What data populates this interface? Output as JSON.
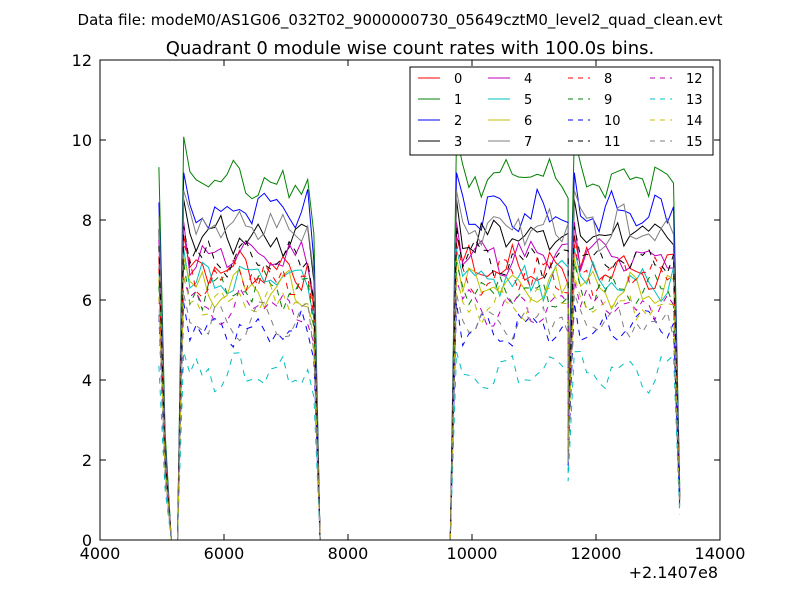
{
  "figure": {
    "suptitle": "Data file: modeM0/AS1G06_032T02_9000000730_05649cztM0_level2_quad_clean.evt"
  },
  "chart_data": {
    "type": "line",
    "title": "Quadrant 0 module wise count rates with 100.0s bins.",
    "xlabel": "",
    "ylabel": "",
    "x_offset_label": "+2.1407e8",
    "xlim": [
      4000,
      14000
    ],
    "ylim": [
      0,
      12
    ],
    "xticks": [
      "4000",
      "6000",
      "8000",
      "10000",
      "12000",
      "14000"
    ],
    "yticks": [
      "0",
      "2",
      "4",
      "6",
      "8",
      "10",
      "12"
    ],
    "grid": false,
    "legend_position": "top-right",
    "segments": [
      {
        "start": 4950,
        "dt": 100,
        "n": 3
      },
      {
        "start": 5350,
        "dt": 100,
        "n": 22
      },
      {
        "start": 9750,
        "dt": 100,
        "n": 19
      },
      {
        "start": 11650,
        "dt": 100,
        "n": 17
      }
    ],
    "series": [
      {
        "name": "0",
        "color": "#ff0000",
        "dash": "solid",
        "base": 6.8,
        "amp": 0.35
      },
      {
        "name": "1",
        "color": "#008000",
        "dash": "solid",
        "base": 9.0,
        "amp": 0.35
      },
      {
        "name": "2",
        "color": "#0000ff",
        "dash": "solid",
        "base": 8.2,
        "amp": 0.35
      },
      {
        "name": "3",
        "color": "#000000",
        "dash": "solid",
        "base": 7.6,
        "amp": 0.3
      },
      {
        "name": "4",
        "color": "#bf00bf",
        "dash": "solid",
        "base": 7.1,
        "amp": 0.3
      },
      {
        "name": "5",
        "color": "#00bfbf",
        "dash": "solid",
        "base": 6.5,
        "amp": 0.3
      },
      {
        "name": "6",
        "color": "#bfbf00",
        "dash": "solid",
        "base": 6.3,
        "amp": 0.3
      },
      {
        "name": "7",
        "color": "#7f7f7f",
        "dash": "solid",
        "base": 7.8,
        "amp": 0.35
      },
      {
        "name": "8",
        "color": "#ff0000",
        "dash": "dashed",
        "base": 6.6,
        "amp": 0.3
      },
      {
        "name": "9",
        "color": "#008000",
        "dash": "dashed",
        "base": 6.2,
        "amp": 0.3
      },
      {
        "name": "10",
        "color": "#0000ff",
        "dash": "dashed",
        "base": 5.3,
        "amp": 0.3
      },
      {
        "name": "11",
        "color": "#000000",
        "dash": "dashed",
        "base": 7.0,
        "amp": 0.3
      },
      {
        "name": "12",
        "color": "#bf00bf",
        "dash": "dashed",
        "base": 5.8,
        "amp": 0.3
      },
      {
        "name": "13",
        "color": "#00bfbf",
        "dash": "dashed",
        "base": 4.2,
        "amp": 0.3
      },
      {
        "name": "14",
        "color": "#bfbf00",
        "dash": "dashed",
        "base": 5.9,
        "amp": 0.3
      },
      {
        "name": "15",
        "color": "#7f7f7f",
        "dash": "dashed",
        "base": 5.5,
        "amp": 0.3
      }
    ]
  }
}
